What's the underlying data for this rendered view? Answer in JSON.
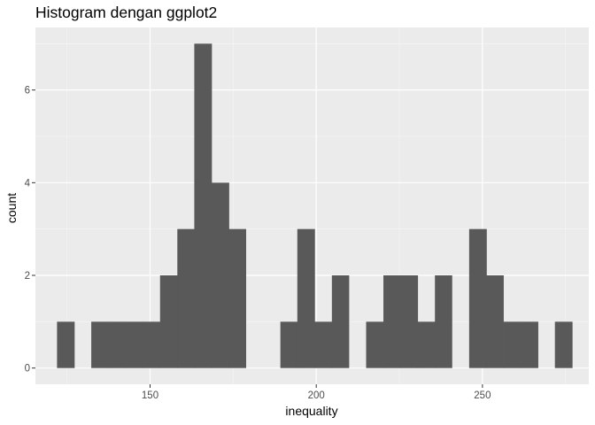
{
  "chart_data": {
    "type": "bar",
    "subtype": "histogram",
    "title": "Histogram dengan ggplot2",
    "xlabel": "inequality",
    "ylabel": "count",
    "xlim": [
      115.5,
      282
    ],
    "ylim": [
      -0.35,
      7.35
    ],
    "x_ticks": [
      150,
      200,
      250
    ],
    "x_tick_labels": [
      "150",
      "200",
      "250"
    ],
    "x_minor_ticks": [
      125,
      175,
      225,
      275
    ],
    "y_ticks": [
      0,
      2,
      4,
      6
    ],
    "y_tick_labels": [
      "0",
      "2",
      "4",
      "6"
    ],
    "y_minor_ticks": [
      1,
      3,
      5,
      7
    ],
    "grid": true,
    "bin_width": 5.16,
    "bins": [
      {
        "x_start": 122.0,
        "x_end": 127.2,
        "count": 1
      },
      {
        "x_start": 132.3,
        "x_end": 137.5,
        "count": 1
      },
      {
        "x_start": 137.5,
        "x_end": 142.7,
        "count": 1
      },
      {
        "x_start": 142.7,
        "x_end": 147.8,
        "count": 1
      },
      {
        "x_start": 147.8,
        "x_end": 153.0,
        "count": 1
      },
      {
        "x_start": 153.0,
        "x_end": 158.2,
        "count": 2
      },
      {
        "x_start": 158.2,
        "x_end": 163.3,
        "count": 3
      },
      {
        "x_start": 163.3,
        "x_end": 168.5,
        "count": 7
      },
      {
        "x_start": 168.5,
        "x_end": 173.7,
        "count": 4
      },
      {
        "x_start": 173.7,
        "x_end": 178.8,
        "count": 3
      },
      {
        "x_start": 189.2,
        "x_end": 194.3,
        "count": 1
      },
      {
        "x_start": 194.3,
        "x_end": 199.5,
        "count": 3
      },
      {
        "x_start": 199.5,
        "x_end": 204.7,
        "count": 1
      },
      {
        "x_start": 204.7,
        "x_end": 209.8,
        "count": 2
      },
      {
        "x_start": 215.0,
        "x_end": 220.2,
        "count": 1
      },
      {
        "x_start": 220.2,
        "x_end": 225.3,
        "count": 2
      },
      {
        "x_start": 225.3,
        "x_end": 230.5,
        "count": 2
      },
      {
        "x_start": 230.5,
        "x_end": 235.7,
        "count": 1
      },
      {
        "x_start": 235.7,
        "x_end": 240.8,
        "count": 2
      },
      {
        "x_start": 246.0,
        "x_end": 251.2,
        "count": 3
      },
      {
        "x_start": 251.2,
        "x_end": 256.3,
        "count": 2
      },
      {
        "x_start": 256.3,
        "x_end": 261.5,
        "count": 1
      },
      {
        "x_start": 261.5,
        "x_end": 266.7,
        "count": 1
      },
      {
        "x_start": 271.8,
        "x_end": 277.0,
        "count": 1
      }
    ],
    "colors": {
      "bar_fill": "#595959",
      "panel_background": "#ebebeb",
      "grid_major": "#ffffff",
      "grid_minor": "#f5f5f5",
      "tick_label": "#4d4d4d",
      "tick_mark": "#333333",
      "text": "#000000"
    }
  }
}
